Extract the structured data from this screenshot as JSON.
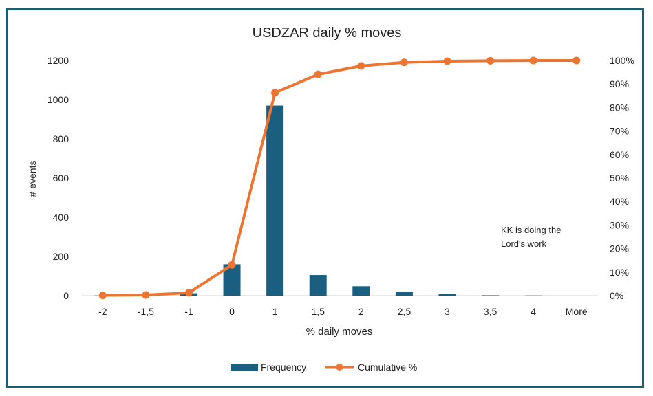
{
  "chart_data": {
    "type": "bar+line",
    "title": "USDZAR daily % moves",
    "xlabel": "% daily moves",
    "ylabel": "# events",
    "categories": [
      "-2",
      "-1,5",
      "-1",
      "0",
      "1",
      "1,5",
      "2",
      "2,5",
      "3",
      "3,5",
      "4",
      "More"
    ],
    "series": [
      {
        "name": "Frequency",
        "type": "bar",
        "axis": "left",
        "values": [
          1,
          3,
          12,
          160,
          970,
          105,
          48,
          20,
          8,
          2,
          1,
          0
        ]
      },
      {
        "name": "Cumulative %",
        "type": "line",
        "axis": "right",
        "values": [
          0.1,
          0.3,
          1.2,
          13.1,
          86.3,
          94.1,
          97.7,
          99.2,
          99.7,
          99.9,
          100,
          100
        ]
      }
    ],
    "ylim_left": [
      0,
      1200
    ],
    "yticks_left": [
      "0",
      "200",
      "400",
      "600",
      "800",
      "1000",
      "1200"
    ],
    "ylim_right": [
      0,
      100
    ],
    "yticks_right": [
      "0%",
      "10%",
      "20%",
      "30%",
      "40%",
      "50%",
      "60%",
      "70%",
      "80%",
      "90%",
      "100%"
    ],
    "annotation": [
      "KK is doing the",
      "Lord's work"
    ],
    "legend": "bottom",
    "grid": false,
    "colors": {
      "bar": "#1a5f80",
      "line": "#ed7532",
      "border": "#1b5d73"
    }
  }
}
